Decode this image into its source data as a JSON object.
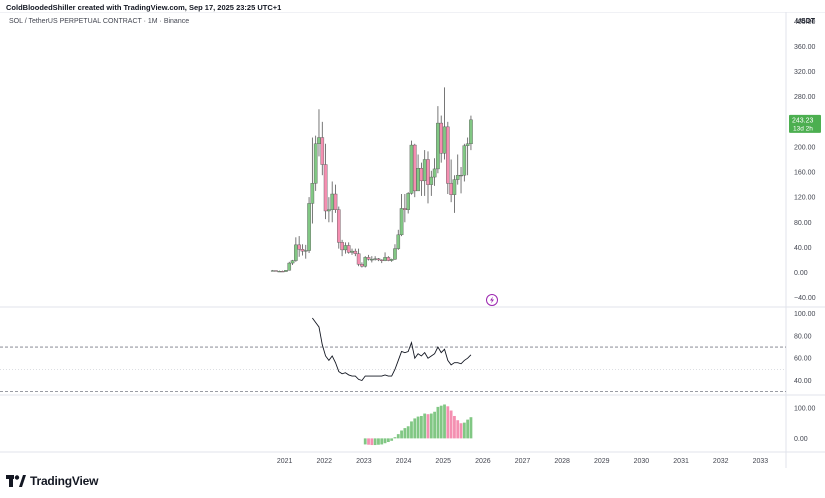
{
  "header": {
    "attribution": "ColdBloodedShiller created with TradingView.com, Sep 17, 2025 23:25 UTC+1"
  },
  "footer": {
    "brand": "TradingView",
    "logo_icon": "tradingview-logo-icon"
  },
  "colors": {
    "up": "#81c784",
    "down": "#f48fb1",
    "wick": "#555555",
    "last_price": "#4caf50",
    "rsi_line": "#131722",
    "grid_dash": "#787b86",
    "flash_icon": "#9c27b0"
  },
  "chart_data": [
    {
      "type": "candlestick",
      "title": "SOL / TetherUS PERPETUAL CONTRACT · 1M · Binance",
      "currency": "USDT",
      "interval": "1M",
      "y_ticks": [
        "400.00",
        "360.00",
        "320.00",
        "280.00",
        "240.00",
        "200.00",
        "160.00",
        "120.00",
        "80.00",
        "40.00",
        "0.00",
        "−40.00"
      ],
      "ylim": [
        -55,
        415
      ],
      "x_ticks": [
        "2021",
        "2022",
        "2023",
        "2024",
        "2025",
        "2026",
        "2027",
        "2028",
        "2029",
        "2030",
        "2031",
        "2032",
        "2033"
      ],
      "xlim": [
        "2020-01",
        "2034-01"
      ],
      "last_price": "243.23",
      "countdown": "13d 2h",
      "candles": [
        {
          "d": "2020-09",
          "o": 3,
          "h": 4,
          "l": 2,
          "c": 3
        },
        {
          "d": "2020-10",
          "o": 3,
          "h": 3.5,
          "l": 1.5,
          "c": 2
        },
        {
          "d": "2020-11",
          "o": 2,
          "h": 3,
          "l": 1.5,
          "c": 2
        },
        {
          "d": "2020-12",
          "o": 2,
          "h": 3,
          "l": 1.5,
          "c": 1.5
        },
        {
          "d": "2021-01",
          "o": 1.5,
          "h": 4,
          "l": 1,
          "c": 3.5
        },
        {
          "d": "2021-02",
          "o": 3.5,
          "h": 17,
          "l": 3,
          "c": 15
        },
        {
          "d": "2021-03",
          "o": 15,
          "h": 20,
          "l": 12,
          "c": 19
        },
        {
          "d": "2021-04",
          "o": 19,
          "h": 56,
          "l": 17,
          "c": 44
        },
        {
          "d": "2021-05",
          "o": 44,
          "h": 58,
          "l": 25,
          "c": 37
        },
        {
          "d": "2021-06",
          "o": 37,
          "h": 45,
          "l": 27,
          "c": 34
        },
        {
          "d": "2021-07",
          "o": 34,
          "h": 44,
          "l": 22,
          "c": 35
        },
        {
          "d": "2021-08",
          "o": 35,
          "h": 120,
          "l": 31,
          "c": 110
        },
        {
          "d": "2021-09",
          "o": 110,
          "h": 215,
          "l": 78,
          "c": 142
        },
        {
          "d": "2021-10",
          "o": 142,
          "h": 218,
          "l": 130,
          "c": 205
        },
        {
          "d": "2021-11",
          "o": 205,
          "h": 260,
          "l": 185,
          "c": 215
        },
        {
          "d": "2021-12",
          "o": 215,
          "h": 240,
          "l": 155,
          "c": 172
        },
        {
          "d": "2022-01",
          "o": 172,
          "h": 205,
          "l": 85,
          "c": 98
        },
        {
          "d": "2022-02",
          "o": 98,
          "h": 120,
          "l": 80,
          "c": 100
        },
        {
          "d": "2022-03",
          "o": 100,
          "h": 145,
          "l": 80,
          "c": 125
        },
        {
          "d": "2022-04",
          "o": 125,
          "h": 140,
          "l": 95,
          "c": 100
        },
        {
          "d": "2022-05",
          "o": 100,
          "h": 105,
          "l": 38,
          "c": 48
        },
        {
          "d": "2022-06",
          "o": 48,
          "h": 52,
          "l": 26,
          "c": 36
        },
        {
          "d": "2022-07",
          "o": 36,
          "h": 48,
          "l": 30,
          "c": 43
        },
        {
          "d": "2022-08",
          "o": 43,
          "h": 48,
          "l": 30,
          "c": 32
        },
        {
          "d": "2022-09",
          "o": 32,
          "h": 38,
          "l": 28,
          "c": 34
        },
        {
          "d": "2022-10",
          "o": 34,
          "h": 38,
          "l": 26,
          "c": 30
        },
        {
          "d": "2022-11",
          "o": 30,
          "h": 38,
          "l": 10,
          "c": 13
        },
        {
          "d": "2022-12",
          "o": 13,
          "h": 16,
          "l": 8,
          "c": 10
        },
        {
          "d": "2023-01",
          "o": 10,
          "h": 26,
          "l": 8,
          "c": 24
        },
        {
          "d": "2023-02",
          "o": 24,
          "h": 28,
          "l": 19,
          "c": 21
        },
        {
          "d": "2023-03",
          "o": 21,
          "h": 26,
          "l": 16,
          "c": 21
        },
        {
          "d": "2023-04",
          "o": 21,
          "h": 26,
          "l": 19,
          "c": 22
        },
        {
          "d": "2023-05",
          "o": 22,
          "h": 23,
          "l": 18,
          "c": 20
        },
        {
          "d": "2023-06",
          "o": 20,
          "h": 21,
          "l": 15,
          "c": 19
        },
        {
          "d": "2023-07",
          "o": 19,
          "h": 32,
          "l": 18,
          "c": 24
        },
        {
          "d": "2023-08",
          "o": 24,
          "h": 26,
          "l": 18,
          "c": 19
        },
        {
          "d": "2023-09",
          "o": 19,
          "h": 22,
          "l": 17,
          "c": 21
        },
        {
          "d": "2023-10",
          "o": 21,
          "h": 45,
          "l": 20,
          "c": 38
        },
        {
          "d": "2023-11",
          "o": 38,
          "h": 68,
          "l": 36,
          "c": 60
        },
        {
          "d": "2023-12",
          "o": 60,
          "h": 125,
          "l": 58,
          "c": 102
        },
        {
          "d": "2024-01",
          "o": 102,
          "h": 125,
          "l": 80,
          "c": 100
        },
        {
          "d": "2024-02",
          "o": 100,
          "h": 128,
          "l": 94,
          "c": 126
        },
        {
          "d": "2024-03",
          "o": 126,
          "h": 210,
          "l": 124,
          "c": 203
        },
        {
          "d": "2024-04",
          "o": 203,
          "h": 205,
          "l": 120,
          "c": 130
        },
        {
          "d": "2024-05",
          "o": 130,
          "h": 188,
          "l": 130,
          "c": 166
        },
        {
          "d": "2024-06",
          "o": 166,
          "h": 175,
          "l": 122,
          "c": 146
        },
        {
          "d": "2024-07",
          "o": 146,
          "h": 195,
          "l": 122,
          "c": 180
        },
        {
          "d": "2024-08",
          "o": 180,
          "h": 193,
          "l": 110,
          "c": 140
        },
        {
          "d": "2024-09",
          "o": 140,
          "h": 162,
          "l": 122,
          "c": 152
        },
        {
          "d": "2024-10",
          "o": 152,
          "h": 182,
          "l": 138,
          "c": 165
        },
        {
          "d": "2024-11",
          "o": 165,
          "h": 265,
          "l": 158,
          "c": 238
        },
        {
          "d": "2024-12",
          "o": 238,
          "h": 250,
          "l": 175,
          "c": 190
        },
        {
          "d": "2025-01",
          "o": 190,
          "h": 295,
          "l": 180,
          "c": 232
        },
        {
          "d": "2025-02",
          "o": 232,
          "h": 240,
          "l": 125,
          "c": 142
        },
        {
          "d": "2025-03",
          "o": 142,
          "h": 180,
          "l": 112,
          "c": 124
        },
        {
          "d": "2025-04",
          "o": 124,
          "h": 155,
          "l": 95,
          "c": 148
        },
        {
          "d": "2025-05",
          "o": 148,
          "h": 188,
          "l": 140,
          "c": 155
        },
        {
          "d": "2025-06",
          "o": 155,
          "h": 168,
          "l": 126,
          "c": 155
        },
        {
          "d": "2025-07",
          "o": 155,
          "h": 205,
          "l": 145,
          "c": 202
        },
        {
          "d": "2025-08",
          "o": 202,
          "h": 215,
          "l": 155,
          "c": 205
        },
        {
          "d": "2025-09",
          "o": 205,
          "h": 250,
          "l": 195,
          "c": 243.23
        }
      ]
    },
    {
      "type": "line",
      "indicator": "RSI",
      "y_ticks": [
        "100.00",
        "80.00",
        "60.00",
        "40.00"
      ],
      "ylim": [
        27,
        105
      ],
      "bands": [
        70,
        30,
        50
      ],
      "points": [
        [
          "2021-09",
          96
        ],
        [
          "2021-10",
          92
        ],
        [
          "2021-11",
          88
        ],
        [
          "2021-12",
          72
        ],
        [
          "2022-01",
          62
        ],
        [
          "2022-02",
          58
        ],
        [
          "2022-03",
          62
        ],
        [
          "2022-04",
          56
        ],
        [
          "2022-05",
          48
        ],
        [
          "2022-06",
          46
        ],
        [
          "2022-07",
          47
        ],
        [
          "2022-08",
          45
        ],
        [
          "2022-09",
          44
        ],
        [
          "2022-10",
          44
        ],
        [
          "2022-11",
          41
        ],
        [
          "2022-12",
          40
        ],
        [
          "2023-01",
          44
        ],
        [
          "2023-02",
          44
        ],
        [
          "2023-03",
          44
        ],
        [
          "2023-04",
          44
        ],
        [
          "2023-05",
          44
        ],
        [
          "2023-06",
          44
        ],
        [
          "2023-07",
          45
        ],
        [
          "2023-08",
          44
        ],
        [
          "2023-09",
          44
        ],
        [
          "2023-10",
          50
        ],
        [
          "2023-11",
          58
        ],
        [
          "2023-12",
          66
        ],
        [
          "2024-01",
          65
        ],
        [
          "2024-02",
          66
        ],
        [
          "2024-03",
          74
        ],
        [
          "2024-04",
          60
        ],
        [
          "2024-05",
          64
        ],
        [
          "2024-06",
          62
        ],
        [
          "2024-07",
          65
        ],
        [
          "2024-08",
          60
        ],
        [
          "2024-09",
          62
        ],
        [
          "2024-10",
          64
        ],
        [
          "2024-11",
          70
        ],
        [
          "2024-12",
          65
        ],
        [
          "2025-01",
          68
        ],
        [
          "2025-02",
          58
        ],
        [
          "2025-03",
          54
        ],
        [
          "2025-04",
          56
        ],
        [
          "2025-05",
          56
        ],
        [
          "2025-06",
          55
        ],
        [
          "2025-07",
          58
        ],
        [
          "2025-08",
          60
        ],
        [
          "2025-09",
          63
        ]
      ]
    },
    {
      "type": "bar",
      "indicator": "Histogram",
      "y_ticks": [
        "100.00",
        "0.00"
      ],
      "ylim": [
        -45,
        140
      ],
      "bars": [
        [
          "2023-01",
          -20
        ],
        [
          "2023-02",
          -21
        ],
        [
          "2023-03",
          -22
        ],
        [
          "2023-04",
          -22
        ],
        [
          "2023-05",
          -21
        ],
        [
          "2023-06",
          -20
        ],
        [
          "2023-07",
          -16
        ],
        [
          "2023-08",
          -12
        ],
        [
          "2023-09",
          -8
        ],
        [
          "2023-10",
          4
        ],
        [
          "2023-11",
          14
        ],
        [
          "2023-12",
          26
        ],
        [
          "2024-01",
          34
        ],
        [
          "2024-02",
          40
        ],
        [
          "2024-03",
          56
        ],
        [
          "2024-04",
          66
        ],
        [
          "2024-05",
          72
        ],
        [
          "2024-06",
          74
        ],
        [
          "2024-07",
          82
        ],
        [
          "2024-08",
          80
        ],
        [
          "2024-09",
          82
        ],
        [
          "2024-10",
          88
        ],
        [
          "2024-11",
          104
        ],
        [
          "2024-12",
          108
        ],
        [
          "2025-01",
          112
        ],
        [
          "2025-02",
          106
        ],
        [
          "2025-03",
          92
        ],
        [
          "2025-04",
          74
        ],
        [
          "2025-05",
          60
        ],
        [
          "2025-06",
          50
        ],
        [
          "2025-07",
          52
        ],
        [
          "2025-08",
          62
        ],
        [
          "2025-09",
          70
        ]
      ]
    }
  ]
}
